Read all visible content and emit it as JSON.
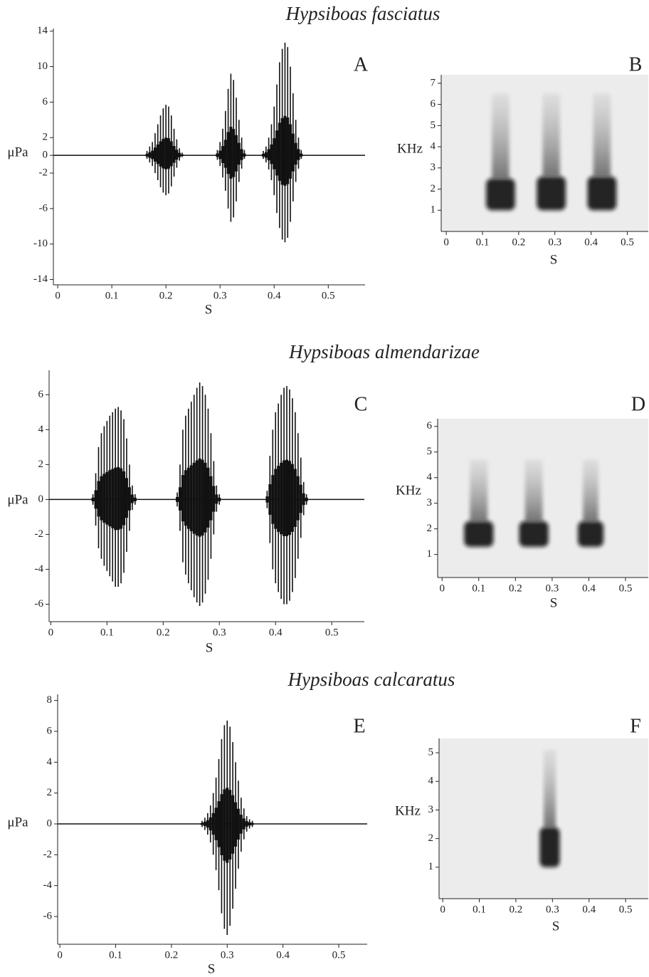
{
  "chart_data": [
    {
      "type": "waveform",
      "title": "Hypsiboas fasciatus",
      "label": "A",
      "ylabel": "μPa",
      "xlabel": "S",
      "color": "#111",
      "xlim": [
        -0.008,
        0.568
      ],
      "ylim": [
        -14.6,
        14.3
      ],
      "xticks": [
        0,
        0.1,
        0.2,
        0.3,
        0.4,
        0.5
      ],
      "yticks": [
        14,
        10,
        6,
        2,
        0,
        -2,
        -6,
        -10,
        -14
      ],
      "x": [
        0.165,
        0.17,
        0.175,
        0.18,
        0.185,
        0.19,
        0.195,
        0.2,
        0.205,
        0.21,
        0.215,
        0.22,
        0.225,
        0.23,
        0.295,
        0.3,
        0.305,
        0.31,
        0.315,
        0.32,
        0.325,
        0.33,
        0.335,
        0.34,
        0.345,
        0.38,
        0.385,
        0.39,
        0.395,
        0.4,
        0.405,
        0.41,
        0.415,
        0.42,
        0.425,
        0.43,
        0.435,
        0.44,
        0.445,
        0.45
      ],
      "values": [
        0.5,
        1,
        1.5,
        2.5,
        3.5,
        4.5,
        5.3,
        5.7,
        5.5,
        4.5,
        3,
        1.8,
        0.8,
        0.3,
        0.6,
        1.5,
        3,
        5,
        7.5,
        9.2,
        8.5,
        6.5,
        4,
        2,
        0.6,
        0.5,
        1,
        2,
        3.5,
        5.5,
        8,
        10.5,
        12,
        12.7,
        12.2,
        10,
        7,
        4,
        2,
        0.6
      ],
      "minima": [
        -0.4,
        -0.8,
        -1.2,
        -2,
        -2.8,
        -3.6,
        -4.2,
        -4.5,
        -4.3,
        -3.5,
        -2.4,
        -1.4,
        -0.6,
        -0.2,
        -0.5,
        -1.2,
        -2.5,
        -4,
        -6,
        -7.5,
        -7,
        -5.2,
        -3,
        -1.5,
        -0.4,
        -0.4,
        -0.8,
        -1.6,
        -2.8,
        -4.5,
        -6.5,
        -8.2,
        -9.5,
        -9.8,
        -9.3,
        -7.5,
        -5.2,
        -3,
        -1.5,
        -0.4
      ]
    },
    {
      "type": "spectrogram",
      "label": "B",
      "ylabel": "KHz",
      "xlabel": "S",
      "xlim": [
        -0.014,
        0.558
      ],
      "ylim": [
        0,
        7.4
      ],
      "xticks": [
        0,
        0.1,
        0.2,
        0.3,
        0.4,
        0.5
      ],
      "yticks": [
        1,
        2,
        3,
        4,
        5,
        6,
        7
      ],
      "notes": {
        "start": [
          0.11,
          0.25,
          0.39
        ],
        "end": [
          0.19,
          0.33,
          0.47
        ],
        "low": [
          1,
          1,
          1
        ],
        "high": [
          2.5,
          2.6,
          2.6
        ],
        "top": [
          6.5,
          6.5,
          6.5
        ]
      },
      "bands": [
        3.4,
        4.0,
        4.8
      ]
    },
    {
      "type": "waveform",
      "title": "Hypsiboas almendarizae",
      "label": "C",
      "ylabel": "μPa",
      "xlabel": "S",
      "color": "#111",
      "xlim": [
        -0.003,
        0.558
      ],
      "ylim": [
        -7,
        7.4
      ],
      "xticks": [
        0,
        0.1,
        0.2,
        0.3,
        0.4,
        0.5
      ],
      "yticks": [
        6,
        4,
        2,
        0,
        -2,
        -4,
        -6
      ],
      "x": [
        0.075,
        0.08,
        0.085,
        0.09,
        0.095,
        0.1,
        0.105,
        0.11,
        0.115,
        0.12,
        0.125,
        0.13,
        0.135,
        0.14,
        0.145,
        0.15,
        0.225,
        0.23,
        0.235,
        0.24,
        0.245,
        0.25,
        0.255,
        0.26,
        0.265,
        0.27,
        0.275,
        0.28,
        0.285,
        0.29,
        0.295,
        0.3,
        0.385,
        0.39,
        0.395,
        0.4,
        0.405,
        0.41,
        0.415,
        0.42,
        0.425,
        0.43,
        0.435,
        0.44,
        0.445,
        0.45,
        0.455
      ],
      "values": [
        0.3,
        1.5,
        3,
        3.8,
        4.2,
        4.5,
        4.8,
        5,
        5.2,
        5.3,
        5.1,
        4.6,
        3.5,
        2,
        0.8,
        0.3,
        0.4,
        2,
        4,
        4.8,
        5.2,
        5.6,
        6,
        6.4,
        6.7,
        6.5,
        6,
        5.2,
        3.8,
        2.2,
        0.8,
        0.3,
        0.5,
        2.5,
        4,
        5,
        5.5,
        6,
        6.4,
        6.5,
        6.3,
        5.8,
        5,
        3.8,
        2.4,
        1,
        0.3
      ],
      "minima": [
        -0.3,
        -1.5,
        -2.8,
        -3.4,
        -3.8,
        -4.1,
        -4.4,
        -4.7,
        -5,
        -5,
        -4.8,
        -4.2,
        -3,
        -1.8,
        -0.6,
        -0.3,
        -0.4,
        -1.8,
        -3.6,
        -4.3,
        -4.8,
        -5.2,
        -5.6,
        -5.9,
        -6.1,
        -5.9,
        -5.4,
        -4.6,
        -3.4,
        -2,
        -0.7,
        -0.3,
        -0.5,
        -2.5,
        -4,
        -4.8,
        -5.3,
        -5.7,
        -6,
        -6,
        -5.8,
        -5.3,
        -4.5,
        -3.4,
        -2.2,
        -0.9,
        -0.3
      ]
    },
    {
      "type": "spectrogram",
      "label": "D",
      "ylabel": "KHz",
      "xlabel": "S",
      "xlim": [
        -0.012,
        0.562
      ],
      "ylim": [
        0.1,
        6.3
      ],
      "xticks": [
        0,
        0.1,
        0.2,
        0.3,
        0.4,
        0.5
      ],
      "yticks": [
        1,
        2,
        3,
        4,
        5,
        6
      ],
      "notes": {
        "start": [
          0.06,
          0.21,
          0.37
        ],
        "end": [
          0.14,
          0.29,
          0.44
        ],
        "low": [
          1.3,
          1.3,
          1.3
        ],
        "high": [
          2.3,
          2.3,
          2.3
        ],
        "top": [
          4.7,
          4.7,
          4.7
        ]
      },
      "bands": [
        5.0,
        2.4
      ]
    },
    {
      "type": "waveform",
      "title": "Hypsiboas calcaratus",
      "label": "E",
      "ylabel": "μPa",
      "xlabel": "S",
      "color": "#111",
      "xlim": [
        -0.004,
        0.551
      ],
      "ylim": [
        -7.8,
        8.4
      ],
      "xticks": [
        0,
        0.1,
        0.2,
        0.3,
        0.4,
        0.5
      ],
      "yticks": [
        8,
        6,
        4,
        2,
        0,
        -2,
        -4,
        -6
      ],
      "x": [
        0.255,
        0.26,
        0.265,
        0.27,
        0.275,
        0.28,
        0.285,
        0.29,
        0.295,
        0.3,
        0.305,
        0.31,
        0.315,
        0.32,
        0.325,
        0.33,
        0.335,
        0.34,
        0.345
      ],
      "values": [
        0.2,
        0.4,
        0.7,
        1.2,
        2,
        3,
        4.2,
        5.5,
        6.4,
        6.7,
        6.3,
        5.3,
        4,
        2.8,
        1.7,
        1,
        0.5,
        0.3,
        0.2
      ],
      "minima": [
        -0.2,
        -0.4,
        -0.7,
        -1.2,
        -2,
        -3,
        -4.3,
        -5.8,
        -6.8,
        -7.2,
        -6.6,
        -5.5,
        -4.2,
        -2.9,
        -1.8,
        -1,
        -0.5,
        -0.3,
        -0.2
      ]
    },
    {
      "type": "spectrogram",
      "label": "F",
      "ylabel": "KHz",
      "xlabel": "S",
      "xlim": [
        -0.01,
        0.562
      ],
      "ylim": [
        -0.1,
        5.5
      ],
      "xticks": [
        0,
        0.1,
        0.2,
        0.3,
        0.4,
        0.5
      ],
      "yticks": [
        1,
        2,
        3,
        4,
        5
      ],
      "notes": {
        "start": [
          0.265
        ],
        "end": [
          0.32
        ],
        "low": [
          1
        ],
        "high": [
          2.4
        ],
        "top": [
          5.1
        ]
      },
      "bands": [
        4.1,
        3.5,
        2.4
      ]
    }
  ]
}
